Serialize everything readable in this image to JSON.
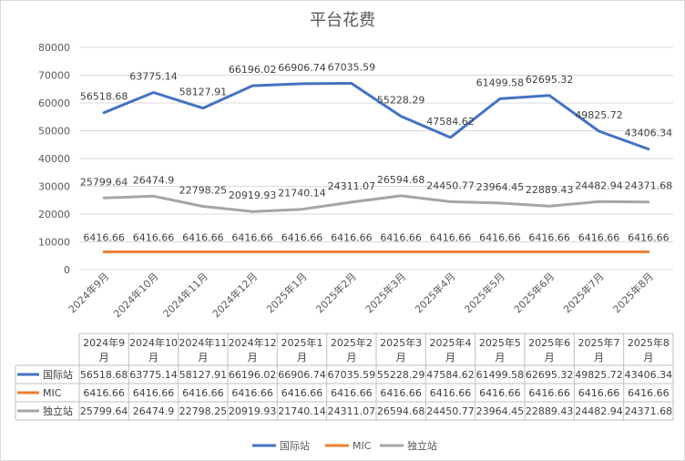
{
  "chart_data": {
    "type": "line",
    "title": "平台花费",
    "categories": [
      "2024年9月",
      "2024年10月",
      "2024年11月",
      "2024年12月",
      "2025年1月",
      "2025年2月",
      "2025年3月",
      "2025年4月",
      "2025年5月",
      "2025年6月",
      "2025年7月",
      "2025年8月"
    ],
    "table_headers": [
      [
        "2024年9",
        "月"
      ],
      [
        "2024年10",
        "月"
      ],
      [
        "2024年11",
        "月"
      ],
      [
        "2024年12",
        "月"
      ],
      [
        "2025年1",
        "月"
      ],
      [
        "2025年2",
        "月"
      ],
      [
        "2025年3",
        "月"
      ],
      [
        "2025年4",
        "月"
      ],
      [
        "2025年5",
        "月"
      ],
      [
        "2025年6",
        "月"
      ],
      [
        "2025年7",
        "月"
      ],
      [
        "2025年8",
        "月"
      ]
    ],
    "series": [
      {
        "name": "国际站",
        "color": "#4472C4",
        "values": [
          56518.68,
          63775.14,
          58127.91,
          66196.02,
          66906.74,
          67035.59,
          55228.29,
          47584.62,
          61499.58,
          62695.32,
          49825.72,
          43406.34
        ]
      },
      {
        "name": "MIC",
        "color": "#ED7D31",
        "values": [
          6416.66,
          6416.66,
          6416.66,
          6416.66,
          6416.66,
          6416.66,
          6416.66,
          6416.66,
          6416.66,
          6416.66,
          6416.66,
          6416.66
        ]
      },
      {
        "name": "独立站",
        "color": "#A5A5A5",
        "values": [
          25799.64,
          26474.9,
          22798.25,
          20919.93,
          21740.14,
          24311.07,
          26594.68,
          24450.77,
          23964.45,
          22889.43,
          24482.94,
          24371.68
        ]
      }
    ],
    "ylim": [
      0,
      80000
    ],
    "yticks": [
      0,
      10000,
      20000,
      30000,
      40000,
      50000,
      60000,
      70000,
      80000
    ],
    "grid": true,
    "legend": "bottom",
    "data_table": true
  }
}
